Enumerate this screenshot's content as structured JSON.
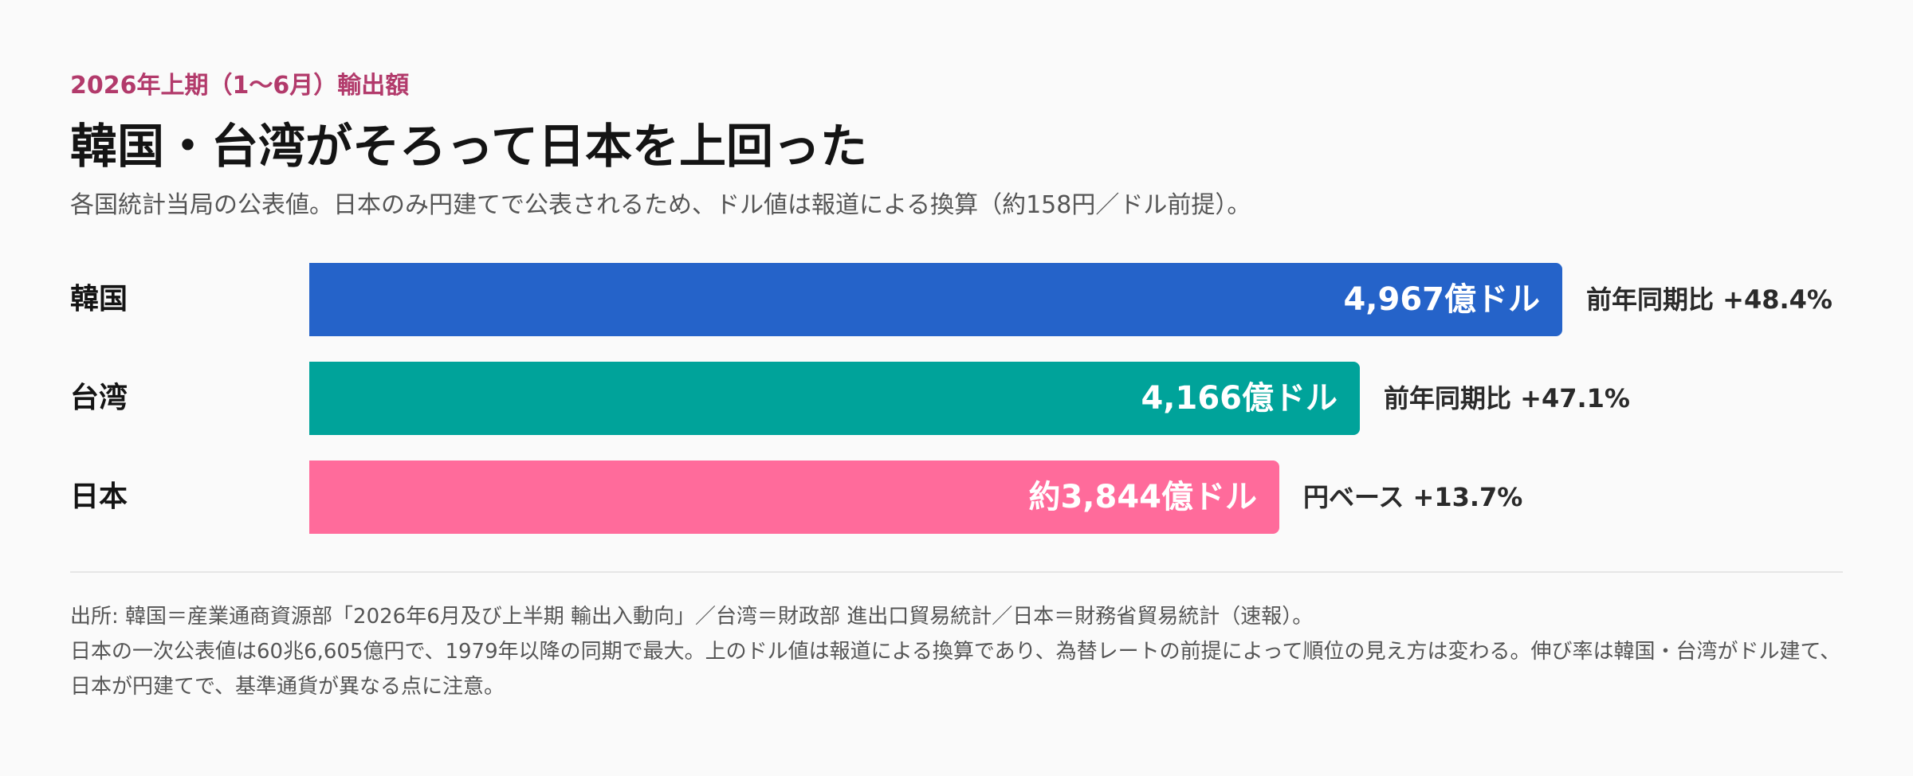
{
  "header": {
    "eyebrow": "2026年上期（1〜6月）輸出額",
    "title": "韓国・台湾がそろって日本を上回った",
    "subtitle": "各国統計当局の公表値。日本のみ円建てで公表されるため、ドル値は報道による換算（約158円／ドル前提）。"
  },
  "chart_data": {
    "type": "bar",
    "orientation": "horizontal",
    "title": "韓国・台湾がそろって日本を上回った",
    "unit": "億ドル",
    "categories": [
      "韓国",
      "台湾",
      "日本"
    ],
    "values": [
      4967,
      4166,
      3844
    ],
    "value_labels": [
      "4,967億ドル",
      "4,166億ドル",
      "約3,844億ドル"
    ],
    "growth_labels": [
      "前年同期比 +48.4%",
      "前年同期比 +47.1%",
      "円ベース +13.7%"
    ],
    "colors": [
      "#2563c9",
      "#00a39a",
      "#ff6b9b"
    ],
    "xlim": [
      0,
      4967
    ]
  },
  "footer": {
    "source": "出所: 韓国＝産業通商資源部「2026年6月及び上半期 輸出入動向」／台湾＝財政部 進出口貿易統計／日本＝財務省貿易統計（速報）。",
    "note": "日本の一次公表値は60兆6,605億円で、1979年以降の同期で最大。上のドル値は報道による換算であり、為替レートの前提によって順位の見え方は変わる。伸び率は韓国・台湾がドル建て、日本が円建てで、基準通貨が異なる点に注意。"
  }
}
